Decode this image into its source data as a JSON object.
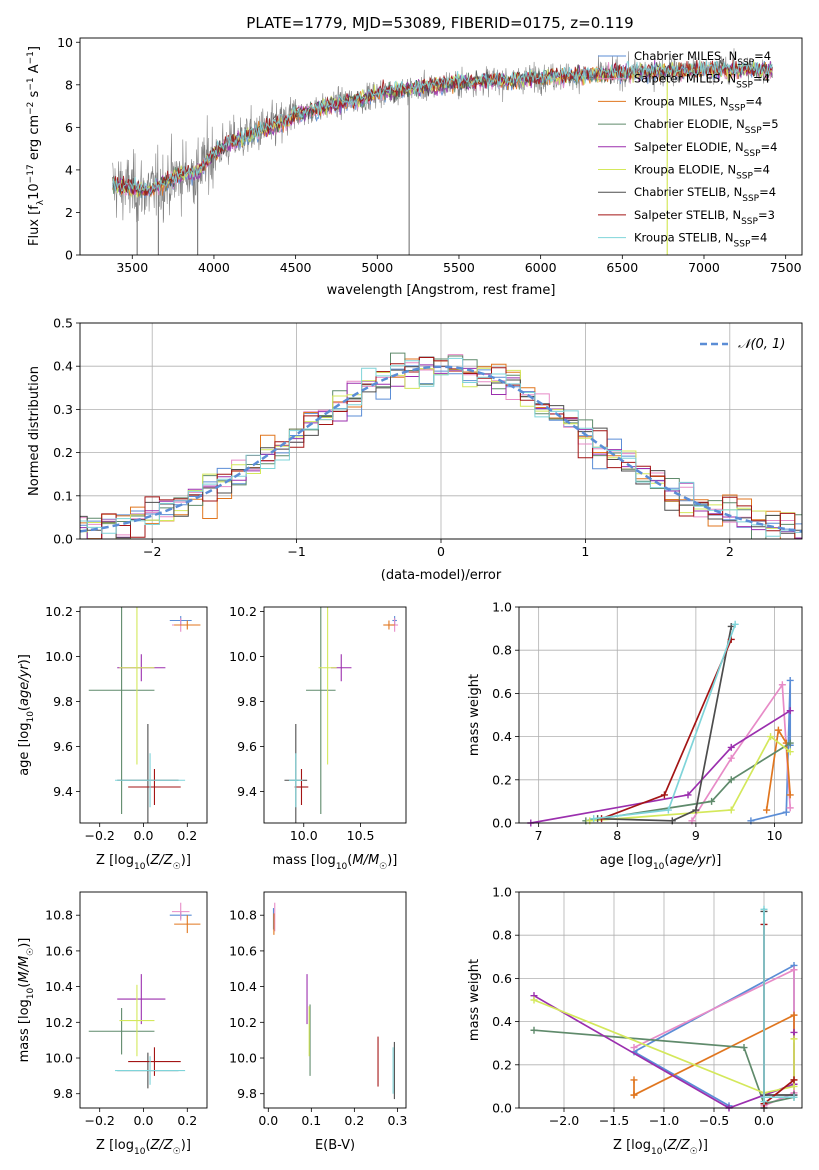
{
  "title": "PLATE=1779, MJD=53089, FIBERID=0175, z=0.119",
  "series": [
    {
      "name": "Chabrier MILES, N_SSP=4",
      "color": "#5b8dd6"
    },
    {
      "name": "Salpeter MILES, N_SSP=4",
      "color": "#e78bc7"
    },
    {
      "name": "Kroupa MILES, N_SSP=4",
      "color": "#e0761f"
    },
    {
      "name": "Chabrier ELODIE, N_SSP=5",
      "color": "#5f8a6b"
    },
    {
      "name": "Salpeter ELODIE, N_SSP=4",
      "color": "#9b2fae"
    },
    {
      "name": "Kroupa ELODIE, N_SSP=4",
      "color": "#d4e85b"
    },
    {
      "name": "Chabrier STELIB, N_SSP=4",
      "color": "#4d4d4d"
    },
    {
      "name": "Salpeter STELIB, N_SSP=3",
      "color": "#a31515"
    },
    {
      "name": "Kroupa STELIB, N_SSP=4",
      "color": "#7fd4d9"
    }
  ],
  "legend_labels": [
    {
      "pre": "Chabrier MILES, N",
      "sub": "SSP",
      "post": "=4"
    },
    {
      "pre": "Salpeter MILES, N",
      "sub": "SSP",
      "post": "=4"
    },
    {
      "pre": "Kroupa MILES, N",
      "sub": "SSP",
      "post": "=4"
    },
    {
      "pre": "Chabrier ELODIE, N",
      "sub": "SSP",
      "post": "=5"
    },
    {
      "pre": "Salpeter ELODIE, N",
      "sub": "SSP",
      "post": "=4"
    },
    {
      "pre": "Kroupa ELODIE, N",
      "sub": "SSP",
      "post": "=4"
    },
    {
      "pre": "Chabrier STELIB, N",
      "sub": "SSP",
      "post": "=4"
    },
    {
      "pre": "Salpeter STELIB, N",
      "sub": "SSP",
      "post": "=3"
    },
    {
      "pre": "Kroupa STELIB, N",
      "sub": "SSP",
      "post": "=4"
    }
  ],
  "chart_data": [
    {
      "id": "spectrum",
      "type": "line",
      "xlabel": "wavelength [Angstrom, rest frame]",
      "ylabel": "Flux [f_λ 10^-17 erg cm^-2 s^-1 A^-1]",
      "xlim": [
        3180,
        7600
      ],
      "ylim": [
        0,
        10.2
      ],
      "xticks": [
        3500,
        4000,
        4500,
        5000,
        5500,
        6000,
        6500,
        7000,
        7500
      ],
      "yticks": [
        0,
        2,
        4,
        6,
        8,
        10
      ],
      "data_color": "#808080",
      "continuum": [
        [
          3380,
          3.3
        ],
        [
          3500,
          3.1
        ],
        [
          3600,
          3.0
        ],
        [
          3700,
          3.4
        ],
        [
          3800,
          3.8
        ],
        [
          3900,
          3.9
        ],
        [
          4000,
          4.8
        ],
        [
          4100,
          5.3
        ],
        [
          4200,
          5.6
        ],
        [
          4300,
          5.9
        ],
        [
          4400,
          6.1
        ],
        [
          4500,
          6.6
        ],
        [
          4600,
          6.8
        ],
        [
          4700,
          7.0
        ],
        [
          4800,
          7.2
        ],
        [
          4900,
          7.3
        ],
        [
          5000,
          7.6
        ],
        [
          5100,
          7.7
        ],
        [
          5200,
          7.8
        ],
        [
          5300,
          7.9
        ],
        [
          5400,
          8.0
        ],
        [
          5500,
          8.1
        ],
        [
          5600,
          8.15
        ],
        [
          5700,
          8.2
        ],
        [
          5800,
          8.2
        ],
        [
          5900,
          8.3
        ],
        [
          6000,
          8.35
        ],
        [
          6200,
          8.4
        ],
        [
          6400,
          8.5
        ],
        [
          6600,
          8.6
        ],
        [
          6800,
          8.65
        ],
        [
          7000,
          8.7
        ],
        [
          7200,
          8.75
        ],
        [
          7400,
          8.7
        ]
      ],
      "grid": false,
      "legend": "upper right"
    },
    {
      "id": "residuals",
      "type": "step",
      "xlabel": "(data-model)/error",
      "ylabel": "Normed distribution",
      "xlim": [
        -2.5,
        2.5
      ],
      "ylim": [
        0,
        0.5
      ],
      "xticks": [
        -2,
        -1,
        0,
        1,
        2
      ],
      "yticks": [
        0.0,
        0.1,
        0.2,
        0.3,
        0.4,
        0.5
      ],
      "bin_width": 0.1,
      "gaussian_label": "𝒩(0, 1)",
      "gaussian_color": "#5b8dd6",
      "grid": true,
      "legend": "upper right"
    },
    {
      "id": "age_vs_Z",
      "type": "errorbar",
      "xlabel": "Z [log10(Z/Z☉)]",
      "ylabel": "age [log10(age/yr)]",
      "xlim": [
        -0.29,
        0.29
      ],
      "ylim": [
        9.26,
        10.22
      ],
      "xticks": [
        -0.2,
        0.0,
        0.2
      ],
      "yticks": [
        9.4,
        9.6,
        9.8,
        10.0,
        10.2
      ],
      "points": [
        {
          "s": 0,
          "x": 0.17,
          "y": 10.16,
          "xe": 0.05,
          "ye": 0.02
        },
        {
          "s": 1,
          "x": 0.17,
          "y": 10.14,
          "xe": 0.04,
          "ye": 0.03
        },
        {
          "s": 2,
          "x": 0.2,
          "y": 10.14,
          "xe": 0.06,
          "ye": 0.02
        },
        {
          "s": 3,
          "x": -0.1,
          "y": 9.85,
          "xe": 0.15,
          "ye": 0.55
        },
        {
          "s": 4,
          "x": -0.01,
          "y": 9.95,
          "xe": 0.11,
          "ye": 0.06
        },
        {
          "s": 5,
          "x": -0.03,
          "y": 9.95,
          "xe": 0.08,
          "ye": 0.43
        },
        {
          "s": 6,
          "x": 0.02,
          "y": 9.45,
          "xe": 0.14,
          "ye": 0.25
        },
        {
          "s": 7,
          "x": 0.05,
          "y": 9.42,
          "xe": 0.12,
          "ye": 0.08
        },
        {
          "s": 8,
          "x": 0.03,
          "y": 9.45,
          "xe": 0.16,
          "ye": 0.12
        }
      ]
    },
    {
      "id": "age_vs_mass",
      "type": "errorbar",
      "xlabel": "mass [log10(M/M☉)]",
      "ylabel": "",
      "xlim": [
        9.65,
        10.9
      ],
      "ylim": [
        9.26,
        10.22
      ],
      "xticks": [
        10.0,
        10.5
      ],
      "yticks": [
        9.4,
        9.6,
        9.8,
        10.0,
        10.2
      ],
      "points": [
        {
          "s": 0,
          "x": 10.8,
          "y": 10.16,
          "xe": 0.02,
          "ye": 0.02
        },
        {
          "s": 1,
          "x": 10.8,
          "y": 10.14,
          "xe": 0.03,
          "ye": 0.03
        },
        {
          "s": 2,
          "x": 10.75,
          "y": 10.14,
          "xe": 0.05,
          "ye": 0.02
        },
        {
          "s": 3,
          "x": 10.15,
          "y": 9.85,
          "xe": 0.13,
          "ye": 0.55
        },
        {
          "s": 4,
          "x": 10.33,
          "y": 9.95,
          "xe": 0.09,
          "ye": 0.06
        },
        {
          "s": 5,
          "x": 10.21,
          "y": 9.95,
          "xe": 0.08,
          "ye": 0.43
        },
        {
          "s": 6,
          "x": 9.93,
          "y": 9.45,
          "xe": 0.1,
          "ye": 0.25
        },
        {
          "s": 7,
          "x": 9.98,
          "y": 9.42,
          "xe": 0.06,
          "ye": 0.08
        },
        {
          "s": 8,
          "x": 9.93,
          "y": 9.45,
          "xe": 0.06,
          "ye": 0.12
        }
      ]
    },
    {
      "id": "mass_vs_Z",
      "type": "errorbar",
      "xlabel": "Z [log10(Z/Z☉)]",
      "ylabel": "mass [log10(M/M☉)]",
      "xlim": [
        -0.29,
        0.29
      ],
      "ylim": [
        9.72,
        10.93
      ],
      "xticks": [
        -0.2,
        0.0,
        0.2
      ],
      "yticks": [
        9.8,
        10.0,
        10.2,
        10.4,
        10.6,
        10.8
      ],
      "points": [
        {
          "s": 0,
          "x": 0.17,
          "y": 10.8,
          "xe": 0.05,
          "ye": 0.02
        },
        {
          "s": 1,
          "x": 0.17,
          "y": 10.82,
          "xe": 0.04,
          "ye": 0.05
        },
        {
          "s": 2,
          "x": 0.2,
          "y": 10.75,
          "xe": 0.06,
          "ye": 0.05
        },
        {
          "s": 3,
          "x": -0.1,
          "y": 10.15,
          "xe": 0.15,
          "ye": 0.13
        },
        {
          "s": 4,
          "x": -0.01,
          "y": 10.33,
          "xe": 0.11,
          "ye": 0.14
        },
        {
          "s": 5,
          "x": -0.03,
          "y": 10.21,
          "xe": 0.08,
          "ye": 0.2
        },
        {
          "s": 6,
          "x": 0.02,
          "y": 9.93,
          "xe": 0.14,
          "ye": 0.1
        },
        {
          "s": 7,
          "x": 0.05,
          "y": 9.98,
          "xe": 0.12,
          "ye": 0.08
        },
        {
          "s": 8,
          "x": 0.03,
          "y": 9.93,
          "xe": 0.16,
          "ye": 0.08
        }
      ]
    },
    {
      "id": "mass_vs_ebv",
      "type": "errorbar",
      "xlabel": "E(B-V)",
      "ylabel": "",
      "xlim": [
        -0.01,
        0.32
      ],
      "ylim": [
        9.72,
        10.93
      ],
      "xticks": [
        0.0,
        0.1,
        0.2,
        0.3
      ],
      "yticks": [
        9.8,
        10.0,
        10.2,
        10.4,
        10.6,
        10.8
      ],
      "points": [
        {
          "s": 0,
          "x": 0.012,
          "y": 10.78,
          "xe": 0.0,
          "ye": 0.06
        },
        {
          "s": 1,
          "x": 0.015,
          "y": 10.79,
          "xe": 0.0,
          "ye": 0.08
        },
        {
          "s": 2,
          "x": 0.013,
          "y": 10.75,
          "xe": 0.0,
          "ye": 0.06
        },
        {
          "s": 3,
          "x": 0.097,
          "y": 10.1,
          "xe": 0.0,
          "ye": 0.2
        },
        {
          "s": 4,
          "x": 0.09,
          "y": 10.33,
          "xe": 0.0,
          "ye": 0.14
        },
        {
          "s": 5,
          "x": 0.095,
          "y": 10.15,
          "xe": 0.0,
          "ye": 0.14
        },
        {
          "s": 6,
          "x": 0.293,
          "y": 9.93,
          "xe": 0.0,
          "ye": 0.16
        },
        {
          "s": 7,
          "x": 0.255,
          "y": 9.98,
          "xe": 0.0,
          "ye": 0.14
        },
        {
          "s": 8,
          "x": 0.29,
          "y": 9.93,
          "xe": 0.0,
          "ye": 0.13
        }
      ]
    },
    {
      "id": "weight_vs_age",
      "type": "line",
      "xlabel": "age [log10(age/yr)]",
      "ylabel": "mass weight",
      "xlim": [
        6.75,
        10.35
      ],
      "ylim": [
        0,
        1
      ],
      "xticks": [
        7,
        8,
        9,
        10
      ],
      "yticks": [
        0.0,
        0.2,
        0.4,
        0.6,
        0.8,
        1.0
      ],
      "grid": true,
      "lines": [
        {
          "s": 0,
          "pts": [
            [
              9.7,
              0.01
            ],
            [
              10.15,
              0.05
            ],
            [
              10.2,
              0.66
            ],
            [
              10.2,
              0.36
            ]
          ]
        },
        {
          "s": 1,
          "pts": [
            [
              8.95,
              0.01
            ],
            [
              9.45,
              0.3
            ],
            [
              10.1,
              0.64
            ],
            [
              10.2,
              0.07
            ]
          ]
        },
        {
          "s": 2,
          "pts": [
            [
              9.9,
              0.06
            ],
            [
              10.05,
              0.43
            ],
            [
              10.15,
              0.37
            ],
            [
              10.2,
              0.13
            ]
          ]
        },
        {
          "s": 3,
          "pts": [
            [
              7.6,
              0.01
            ],
            [
              9.2,
              0.1
            ],
            [
              9.45,
              0.2
            ],
            [
              10.2,
              0.37
            ]
          ]
        },
        {
          "s": 4,
          "pts": [
            [
              6.9,
              0.0
            ],
            [
              8.9,
              0.13
            ],
            [
              9.45,
              0.35
            ],
            [
              10.2,
              0.52
            ]
          ]
        },
        {
          "s": 5,
          "pts": [
            [
              7.65,
              0.01
            ],
            [
              9.45,
              0.06
            ],
            [
              9.95,
              0.4
            ],
            [
              10.2,
              0.33
            ]
          ]
        },
        {
          "s": 6,
          "pts": [
            [
              7.75,
              0.02
            ],
            [
              8.7,
              0.01
            ],
            [
              9.0,
              0.06
            ],
            [
              9.45,
              0.91
            ]
          ]
        },
        {
          "s": 7,
          "pts": [
            [
              7.8,
              0.02
            ],
            [
              8.6,
              0.13
            ],
            [
              9.45,
              0.85
            ]
          ]
        },
        {
          "s": 8,
          "pts": [
            [
              7.7,
              0.02
            ],
            [
              8.65,
              0.06
            ],
            [
              9.5,
              0.92
            ]
          ]
        }
      ]
    },
    {
      "id": "weight_vs_Z",
      "type": "line",
      "xlabel": "Z [log10(Z/Z☉)]",
      "ylabel": "mass weight",
      "xlim": [
        -2.45,
        0.38
      ],
      "ylim": [
        0,
        1
      ],
      "xticks": [
        -2.0,
        -1.5,
        -1.0,
        -0.5,
        0.0
      ],
      "yticks": [
        0.0,
        0.2,
        0.4,
        0.6,
        0.8,
        1.0
      ],
      "grid": true,
      "lines": [
        {
          "s": 0,
          "pts": [
            [
              -0.35,
              0.01
            ],
            [
              -1.3,
              0.26
            ],
            [
              0.3,
              0.66
            ],
            [
              0.3,
              0.06
            ]
          ]
        },
        {
          "s": 1,
          "pts": [
            [
              -1.3,
              0.28
            ],
            [
              0.3,
              0.64
            ],
            [
              0.3,
              0.07
            ],
            [
              0.0,
              0.01
            ]
          ]
        },
        {
          "s": 2,
          "pts": [
            [
              -1.3,
              0.06
            ],
            [
              -1.3,
              0.13
            ],
            [
              -1.3,
              0.06
            ],
            [
              0.3,
              0.43
            ],
            [
              0.3,
              0.13
            ]
          ]
        },
        {
          "s": 3,
          "pts": [
            [
              -2.3,
              0.36
            ],
            [
              -0.2,
              0.28
            ],
            [
              0.0,
              0.02
            ],
            [
              0.3,
              0.05
            ]
          ]
        },
        {
          "s": 4,
          "pts": [
            [
              -2.3,
              0.52
            ],
            [
              -0.35,
              0.0
            ],
            [
              0.3,
              0.11
            ],
            [
              0.3,
              0.35
            ]
          ]
        },
        {
          "s": 5,
          "pts": [
            [
              -2.3,
              0.5
            ],
            [
              0.0,
              0.07
            ],
            [
              0.3,
              0.1
            ],
            [
              0.3,
              0.32
            ]
          ]
        },
        {
          "s": 6,
          "pts": [
            [
              0.0,
              0.0
            ],
            [
              0.0,
              0.91
            ],
            [
              0.0,
              0.06
            ],
            [
              0.3,
              0.06
            ]
          ]
        },
        {
          "s": 7,
          "pts": [
            [
              0.0,
              0.02
            ],
            [
              0.0,
              0.85
            ],
            [
              0.0,
              0.02
            ],
            [
              0.3,
              0.13
            ]
          ]
        },
        {
          "s": 8,
          "pts": [
            [
              0.0,
              0.03
            ],
            [
              0.0,
              0.92
            ],
            [
              0.0,
              0.05
            ],
            [
              0.3,
              0.05
            ]
          ]
        }
      ]
    }
  ]
}
